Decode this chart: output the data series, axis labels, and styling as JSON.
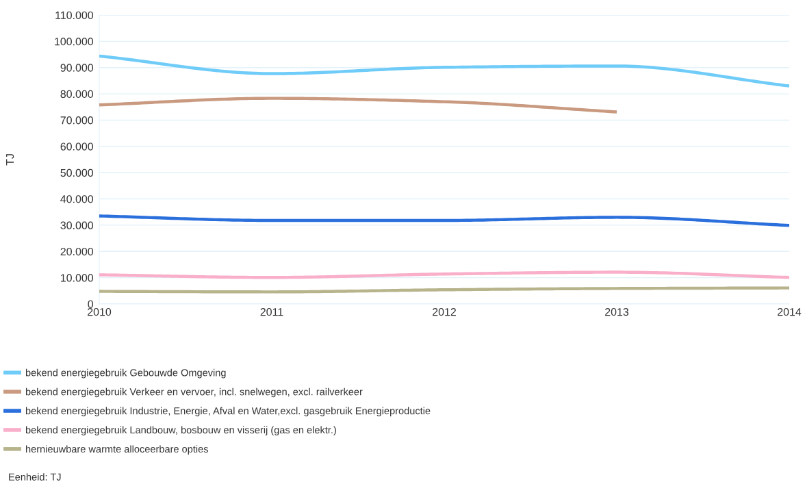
{
  "chart_data": {
    "type": "line",
    "x": [
      2010,
      2011,
      2012,
      2013,
      2014
    ],
    "series": [
      {
        "name": "bekend energiegebruik Gebouwde Omgeving",
        "color": "#6fcbf7",
        "values": [
          94400,
          87700,
          90100,
          90600,
          83000
        ]
      },
      {
        "name": "bekend energiegebruik Verkeer en vervoer, incl. snelwegen, excl. railverkeer",
        "color": "#c99a80",
        "values": [
          75800,
          78300,
          77000,
          73100,
          null
        ]
      },
      {
        "name": "bekend energiegebruik Industrie, Energie, Afval en Water,excl. gasgebruik Energieproductie",
        "color": "#2a6fdc",
        "values": [
          33500,
          31800,
          31800,
          33000,
          29900
        ]
      },
      {
        "name": "bekend energiegebruik Landbouw, bosbouw en visserij (gas en elektr.)",
        "color": "#f9aec9",
        "values": [
          11100,
          10100,
          11400,
          12100,
          10100
        ]
      },
      {
        "name": "hernieuwbare warmte alloceerbare opties",
        "color": "#b7b48c",
        "values": [
          4800,
          4600,
          5400,
          5900,
          6100
        ]
      }
    ],
    "ylabel": "TJ",
    "xlim": [
      2010,
      2014
    ],
    "xticks": [
      2010,
      2011,
      2012,
      2013,
      2014
    ],
    "ylim": [
      0,
      110000
    ],
    "yticks": [
      0,
      {
        "value": 10000,
        "label": "10.000"
      },
      {
        "value": 20000,
        "label": "20.000"
      },
      {
        "value": 30000,
        "label": "30.000"
      },
      {
        "value": 40000,
        "label": "40.000"
      },
      {
        "value": 50000,
        "label": "50.000"
      },
      {
        "value": 60000,
        "label": "60.000"
      },
      {
        "value": 70000,
        "label": "70.000"
      },
      {
        "value": 80000,
        "label": "80.000"
      },
      {
        "value": 90000,
        "label": "90.000"
      },
      {
        "value": 100000,
        "label": "100.000"
      },
      {
        "value": 110000,
        "label": "110.000"
      }
    ],
    "grid": "y",
    "legend": "bottom",
    "annotations": [
      "Eenheid: TJ"
    ]
  }
}
